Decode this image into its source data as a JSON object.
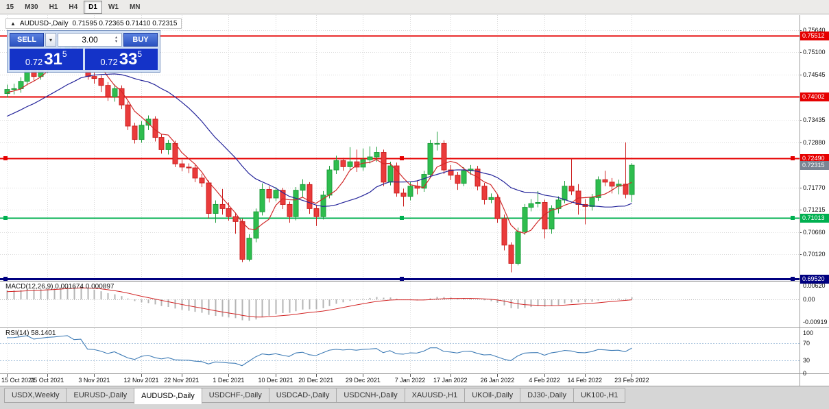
{
  "toolbar": {
    "items": [
      "15",
      "M30",
      "H1",
      "H4",
      "D1",
      "W1",
      "MN"
    ],
    "active": "D1"
  },
  "symbol_header": {
    "collapse_icon": "▲",
    "title": "AUDUSD-,Daily",
    "ohlc": "0.71595 0.72365 0.71410 0.72315"
  },
  "trade_panel": {
    "sell_label": "SELL",
    "buy_label": "BUY",
    "lot": "3.00",
    "dropdown_icon": "▾",
    "spin_up": "▴",
    "spin_down": "▾",
    "sell_price": {
      "big": "0.72",
      "mid": "31",
      "sup": "5"
    },
    "buy_price": {
      "big": "0.72",
      "mid": "33",
      "sup": "5"
    }
  },
  "ui_colors": {
    "trade_blue": "#1433c8",
    "button_blue_top": "#5b82e0",
    "button_blue_bottom": "#2a51c0"
  },
  "levels": [
    {
      "label": "0.75512",
      "price": 0.75512,
      "color": "#e60000",
      "width": 2,
      "handles": false
    },
    {
      "label": "0.74002",
      "price": 0.74002,
      "color": "#e60000",
      "width": 2,
      "handles": false
    },
    {
      "label": "0.72490",
      "price": 0.7249,
      "color": "#e60000",
      "width": 2,
      "handles": true
    },
    {
      "label": "0.71013",
      "price": 0.71013,
      "color": "#00b050",
      "width": 2,
      "handles": true
    },
    {
      "label": "0.69520",
      "price": 0.6952,
      "color": "#000080",
      "width": 3,
      "handles": true
    }
  ],
  "current_price": {
    "label": "0.72315",
    "price": 0.72315,
    "bg": "#7a8594"
  },
  "axis": {
    "price_ticks": [
      {
        "label": "0.75640",
        "price": 0.7564
      },
      {
        "label": "0.75100",
        "price": 0.751
      },
      {
        "label": "0.74545",
        "price": 0.74545
      },
      {
        "label": "0.73435",
        "price": 0.73435
      },
      {
        "label": "0.72880",
        "price": 0.7288
      },
      {
        "label": "0.71770",
        "price": 0.7177
      },
      {
        "label": "0.71215",
        "price": 0.71215
      },
      {
        "label": "0.70660",
        "price": 0.7066
      },
      {
        "label": "0.70120",
        "price": 0.7012
      }
    ],
    "date_ticks": [
      {
        "label": "15 Oct 2021",
        "idx": 0
      },
      {
        "label": "25 Oct 2021",
        "idx": 6
      },
      {
        "label": "3 Nov 2021",
        "idx": 13
      },
      {
        "label": "12 Nov 2021",
        "idx": 20
      },
      {
        "label": "22 Nov 2021",
        "idx": 26
      },
      {
        "label": "1 Dec 2021",
        "idx": 33
      },
      {
        "label": "10 Dec 2021",
        "idx": 40
      },
      {
        "label": "20 Dec 2021",
        "idx": 46
      },
      {
        "label": "29 Dec 2021",
        "idx": 53
      },
      {
        "label": "7 Jan 2022",
        "idx": 60
      },
      {
        "label": "17 Jan 2022",
        "idx": 66
      },
      {
        "label": "26 Jan 2022",
        "idx": 73
      },
      {
        "label": "4 Feb 2022",
        "idx": 80
      },
      {
        "label": "14 Feb 2022",
        "idx": 86
      },
      {
        "label": "23 Feb 2022",
        "idx": 93
      }
    ]
  },
  "macd": {
    "label": "MACD(12,26,9) 0.001674 0.000897",
    "axis": [
      {
        "label": "0.00620",
        "value": 0.0062
      },
      {
        "label": "0.00",
        "value": 0
      },
      {
        "label": "-0.00919",
        "value": -0.00919
      }
    ]
  },
  "rsi": {
    "label": "RSI(14) 58.1401",
    "axis": [
      {
        "label": "100",
        "value": 100
      },
      {
        "label": "70",
        "value": 70
      },
      {
        "label": "30",
        "value": 30
      },
      {
        "label": "0",
        "value": 0
      }
    ],
    "dotted_levels": [
      70,
      30
    ]
  },
  "tabs": [
    {
      "label": "USDX,Weekly",
      "active": false
    },
    {
      "label": "EURUSD-,Daily",
      "active": false
    },
    {
      "label": "AUDUSD-,Daily",
      "active": true
    },
    {
      "label": "USDCHF-,Daily",
      "active": false
    },
    {
      "label": "USDCAD-,Daily",
      "active": false
    },
    {
      "label": "USDCNH-,Daily",
      "active": false
    },
    {
      "label": "XAUUSD-,H1",
      "active": false
    },
    {
      "label": "UKOil-,Daily",
      "active": false
    },
    {
      "label": "DJ30-,Daily",
      "active": false
    },
    {
      "label": "UK100-,H1",
      "active": false
    }
  ],
  "chart_data": {
    "type": "candlestick",
    "title": "AUDUSD-,Daily",
    "symbol": "AUDUSD",
    "timeframe": "Daily",
    "ohlc_current": {
      "open": 0.71595,
      "high": 0.72365,
      "low": 0.7141,
      "close": 0.72315
    },
    "colors": {
      "up": "#2ebd4e",
      "up_border": "#1e9e3c",
      "down": "#ea3b3b",
      "down_border": "#cc2222",
      "ma_fast": "#d02828",
      "ma_slow": "#24249a",
      "macd_hist": "#b4b4b4",
      "macd_signal": "#d22424",
      "rsi_line": "#3f7cb6",
      "grid": "#dcdcdc"
    },
    "overlays": [
      {
        "name": "ma-fast",
        "type": "sma",
        "period": 5
      },
      {
        "name": "ma-slow",
        "type": "sma",
        "period": 20
      }
    ],
    "pre_closes": [
      0.7262,
      0.727,
      0.7282,
      0.7296,
      0.7305,
      0.7288,
      0.73,
      0.7315,
      0.733,
      0.7346,
      0.736,
      0.7352,
      0.737,
      0.7385,
      0.7398,
      0.739,
      0.7402,
      0.7415,
      0.741,
      0.7408
    ],
    "candles": [
      [
        0.7408,
        0.743,
        0.7398,
        0.7418
      ],
      [
        0.7418,
        0.7432,
        0.7406,
        0.742
      ],
      [
        0.742,
        0.7448,
        0.741,
        0.7438
      ],
      [
        0.7438,
        0.7475,
        0.7428,
        0.7466
      ],
      [
        0.7466,
        0.7478,
        0.744,
        0.745
      ],
      [
        0.745,
        0.7477,
        0.7442,
        0.7468
      ],
      [
        0.7468,
        0.7495,
        0.7458,
        0.7488
      ],
      [
        0.7488,
        0.7508,
        0.7478,
        0.75
      ],
      [
        0.75,
        0.7527,
        0.7492,
        0.7518
      ],
      [
        0.7518,
        0.7555,
        0.751,
        0.754
      ],
      [
        0.754,
        0.7548,
        0.7508,
        0.7518
      ],
      [
        0.7518,
        0.7536,
        0.7504,
        0.7527
      ],
      [
        0.7527,
        0.7535,
        0.7442,
        0.745
      ],
      [
        0.745,
        0.746,
        0.7432,
        0.7445
      ],
      [
        0.7445,
        0.7453,
        0.7412,
        0.7428
      ],
      [
        0.7428,
        0.7436,
        0.739,
        0.74
      ],
      [
        0.74,
        0.743,
        0.7388,
        0.742
      ],
      [
        0.742,
        0.7428,
        0.737,
        0.738
      ],
      [
        0.738,
        0.7388,
        0.7318,
        0.7328
      ],
      [
        0.7328,
        0.7336,
        0.7285,
        0.7295
      ],
      [
        0.7295,
        0.734,
        0.7287,
        0.733
      ],
      [
        0.733,
        0.7354,
        0.7318,
        0.7345
      ],
      [
        0.7345,
        0.7352,
        0.729,
        0.73
      ],
      [
        0.73,
        0.7308,
        0.726,
        0.727
      ],
      [
        0.727,
        0.7294,
        0.7258,
        0.7285
      ],
      [
        0.7285,
        0.7292,
        0.7227,
        0.7235
      ],
      [
        0.7235,
        0.7245,
        0.7217,
        0.7227
      ],
      [
        0.7227,
        0.7236,
        0.7212,
        0.7225
      ],
      [
        0.7225,
        0.7232,
        0.719,
        0.72
      ],
      [
        0.72,
        0.721,
        0.7178,
        0.7188
      ],
      [
        0.7188,
        0.7194,
        0.71,
        0.7113
      ],
      [
        0.7113,
        0.7145,
        0.709,
        0.7135
      ],
      [
        0.7135,
        0.7173,
        0.711,
        0.7125
      ],
      [
        0.7125,
        0.714,
        0.7095,
        0.7105
      ],
      [
        0.7105,
        0.7115,
        0.7063,
        0.7093
      ],
      [
        0.7093,
        0.71,
        0.6993,
        0.7
      ],
      [
        0.7,
        0.7062,
        0.6995,
        0.7052
      ],
      [
        0.7052,
        0.7125,
        0.7042,
        0.7117
      ],
      [
        0.7117,
        0.7187,
        0.7108,
        0.7172
      ],
      [
        0.7172,
        0.718,
        0.714,
        0.7151
      ],
      [
        0.7151,
        0.7178,
        0.7143,
        0.717
      ],
      [
        0.717,
        0.7176,
        0.7124,
        0.7135
      ],
      [
        0.7135,
        0.7142,
        0.709,
        0.7105
      ],
      [
        0.7105,
        0.7178,
        0.7096,
        0.717
      ],
      [
        0.717,
        0.7197,
        0.7152,
        0.7184
      ],
      [
        0.7184,
        0.719,
        0.7112,
        0.7125
      ],
      [
        0.7125,
        0.7133,
        0.7082,
        0.7105
      ],
      [
        0.7105,
        0.7168,
        0.7098,
        0.7158
      ],
      [
        0.7158,
        0.723,
        0.715,
        0.722
      ],
      [
        0.722,
        0.7255,
        0.721,
        0.7243
      ],
      [
        0.7243,
        0.725,
        0.7218,
        0.7228
      ],
      [
        0.7228,
        0.7276,
        0.722,
        0.724
      ],
      [
        0.724,
        0.727,
        0.7215,
        0.7227
      ],
      [
        0.7227,
        0.7273,
        0.7218,
        0.7245
      ],
      [
        0.7245,
        0.7278,
        0.7236,
        0.7252
      ],
      [
        0.7252,
        0.7277,
        0.724,
        0.7263
      ],
      [
        0.7263,
        0.727,
        0.718,
        0.719
      ],
      [
        0.719,
        0.724,
        0.7182,
        0.723
      ],
      [
        0.723,
        0.7238,
        0.7154,
        0.7163
      ],
      [
        0.7163,
        0.7174,
        0.713,
        0.7155
      ],
      [
        0.7155,
        0.719,
        0.7145,
        0.718
      ],
      [
        0.718,
        0.7193,
        0.716,
        0.7175
      ],
      [
        0.7175,
        0.7218,
        0.7166,
        0.7209
      ],
      [
        0.7209,
        0.7294,
        0.72,
        0.7285
      ],
      [
        0.7285,
        0.7314,
        0.7268,
        0.7285
      ],
      [
        0.7285,
        0.7293,
        0.721,
        0.722
      ],
      [
        0.722,
        0.7232,
        0.7195,
        0.7207
      ],
      [
        0.7207,
        0.7215,
        0.7171,
        0.7187
      ],
      [
        0.7187,
        0.7227,
        0.718,
        0.7218
      ],
      [
        0.7218,
        0.7232,
        0.7208,
        0.7222
      ],
      [
        0.7222,
        0.723,
        0.717,
        0.718
      ],
      [
        0.718,
        0.7188,
        0.7135,
        0.7147
      ],
      [
        0.7147,
        0.7162,
        0.7138,
        0.7152
      ],
      [
        0.7152,
        0.7158,
        0.709,
        0.71
      ],
      [
        0.71,
        0.711,
        0.7022,
        0.7035
      ],
      [
        0.7035,
        0.7042,
        0.6968,
        0.699
      ],
      [
        0.699,
        0.7078,
        0.6985,
        0.7068
      ],
      [
        0.7068,
        0.7136,
        0.706,
        0.7128
      ],
      [
        0.7128,
        0.7148,
        0.7118,
        0.7137
      ],
      [
        0.7137,
        0.7168,
        0.7128,
        0.714
      ],
      [
        0.714,
        0.7147,
        0.7051,
        0.7075
      ],
      [
        0.7075,
        0.7133,
        0.7063,
        0.7125
      ],
      [
        0.7125,
        0.7155,
        0.7113,
        0.7146
      ],
      [
        0.7146,
        0.7193,
        0.7138,
        0.718
      ],
      [
        0.718,
        0.7248,
        0.7158,
        0.7168
      ],
      [
        0.7168,
        0.7185,
        0.711,
        0.7135
      ],
      [
        0.7135,
        0.7148,
        0.7086,
        0.713
      ],
      [
        0.713,
        0.7161,
        0.712,
        0.7152
      ],
      [
        0.7152,
        0.7204,
        0.7144,
        0.7196
      ],
      [
        0.7196,
        0.7218,
        0.718,
        0.719
      ],
      [
        0.719,
        0.72,
        0.7162,
        0.718
      ],
      [
        0.718,
        0.7196,
        0.716,
        0.7185
      ],
      [
        0.7185,
        0.7288,
        0.715,
        0.716
      ],
      [
        0.71595,
        0.72365,
        0.7141,
        0.72315
      ]
    ]
  }
}
